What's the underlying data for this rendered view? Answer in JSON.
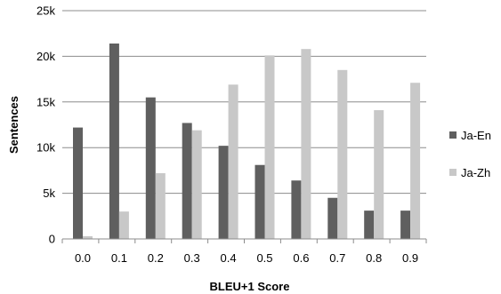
{
  "chart_data": {
    "type": "bar",
    "title": "",
    "xlabel": "BLEU+1 Score",
    "ylabel": "Sentences",
    "categories": [
      "0.0",
      "0.1",
      "0.2",
      "0.3",
      "0.4",
      "0.5",
      "0.6",
      "0.7",
      "0.8",
      "0.9"
    ],
    "series": [
      {
        "name": "Ja-En",
        "color": "#5f5f5f",
        "values": [
          12200,
          21400,
          15500,
          12700,
          10200,
          8100,
          6400,
          4500,
          3100,
          3100
        ]
      },
      {
        "name": "Ja-Zh",
        "color": "#c8c8c8",
        "values": [
          300,
          3000,
          7200,
          11900,
          16900,
          20100,
          20800,
          18500,
          14100,
          17100
        ]
      }
    ],
    "ylim": [
      0,
      25000
    ],
    "yticks": [
      0,
      5000,
      10000,
      15000,
      20000,
      25000
    ],
    "ytick_labels": [
      "0",
      "5k",
      "10k",
      "15k",
      "20k",
      "25k"
    ],
    "grid": true,
    "legend_position": "right"
  }
}
